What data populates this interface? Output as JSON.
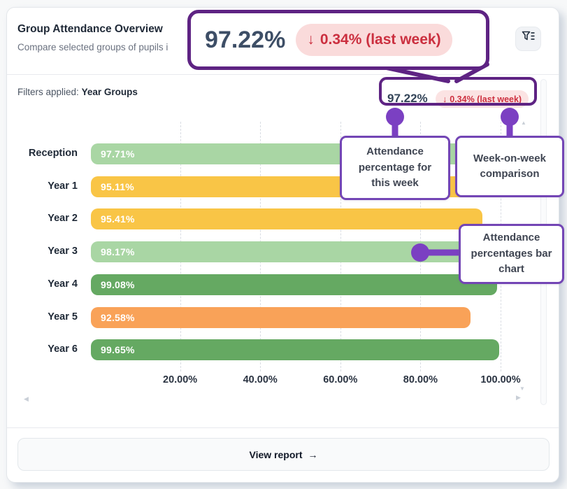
{
  "header": {
    "title": "Group Attendance Overview",
    "subtitle": "Compare selected groups of pupils i",
    "filter_icon": "filter-funnel-list"
  },
  "filters": {
    "label": "Filters applied:",
    "value": "Year Groups"
  },
  "stats": {
    "value": "97.22%",
    "delta_arrow": "↓",
    "delta": "0.34% (last week)"
  },
  "magnifier": {
    "value": "97.22%",
    "delta_arrow": "↓",
    "delta": "0.34% (last week)"
  },
  "annotations": {
    "this_week": "Attendance percentage for this week",
    "week_on_week": "Week-on-week comparison",
    "bar_chart": "Attendance percentages bar chart"
  },
  "chart_data": {
    "type": "bar",
    "orientation": "horizontal",
    "title": "Group Attendance Overview",
    "categories": [
      "Reception",
      "Year 1",
      "Year 2",
      "Year 3",
      "Year 4",
      "Year 5",
      "Year 6"
    ],
    "values": [
      97.71,
      95.11,
      95.41,
      98.17,
      99.08,
      92.58,
      99.65
    ],
    "value_labels": [
      "97.71%",
      "95.11%",
      "95.41%",
      "98.17%",
      "99.08%",
      "92.58%",
      "99.65%"
    ],
    "bar_colors": [
      "#a9d6a4",
      "#f9c546",
      "#f9c546",
      "#a9d6a4",
      "#65a962",
      "#f9a258",
      "#65a962"
    ],
    "x_ticks": [
      "20.00%",
      "40.00%",
      "60.00%",
      "80.00%",
      "100.00%"
    ],
    "x_tick_values": [
      20,
      40,
      60,
      80,
      100
    ],
    "xlim": [
      0,
      100
    ],
    "grid": "vertical-dashed",
    "legend": "none"
  },
  "colors": {
    "annotation_purple_dark": "#5e2383",
    "annotation_purple_pin": "#7b40c2",
    "annotation_purple_border": "#7345b5",
    "badge_bg": "#fbe3e3",
    "badge_text": "#cd2f3f"
  },
  "footer": {
    "view_report": "View report",
    "arrow": "→"
  },
  "scroll_hints": {
    "left": "◀",
    "right": "▶",
    "up": "▲",
    "down": "▼"
  }
}
